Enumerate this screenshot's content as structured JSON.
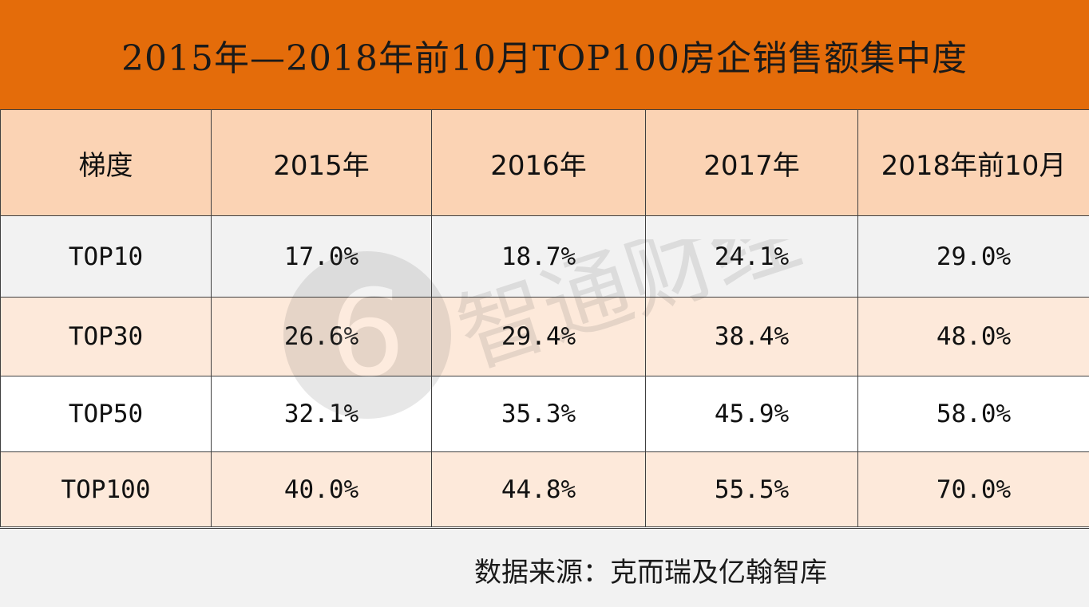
{
  "chart_data": {
    "type": "table",
    "title": "2015年—2018年前10月TOP100房企销售额集中度",
    "columns": [
      "梯度",
      "2015年",
      "2016年",
      "2017年",
      "2018年前10月"
    ],
    "rows": [
      [
        "TOP10",
        "17.0%",
        "18.7%",
        "24.1%",
        "29.0%"
      ],
      [
        "TOP30",
        "26.6%",
        "29.4%",
        "38.4%",
        "48.0%"
      ],
      [
        "TOP50",
        "32.1%",
        "35.3%",
        "45.9%",
        "58.0%"
      ],
      [
        "TOP100",
        "40.0%",
        "44.8%",
        "55.5%",
        "70.0%"
      ]
    ],
    "source": "数据来源：克而瑞及亿翰智库",
    "watermark": "智通财经"
  },
  "colors": {
    "title_bg": "#e46c0a",
    "header_bg": "#fbd3b4",
    "row_gray": "#f2f2f2",
    "row_peach": "#fde9da",
    "row_white": "#ffffff"
  }
}
